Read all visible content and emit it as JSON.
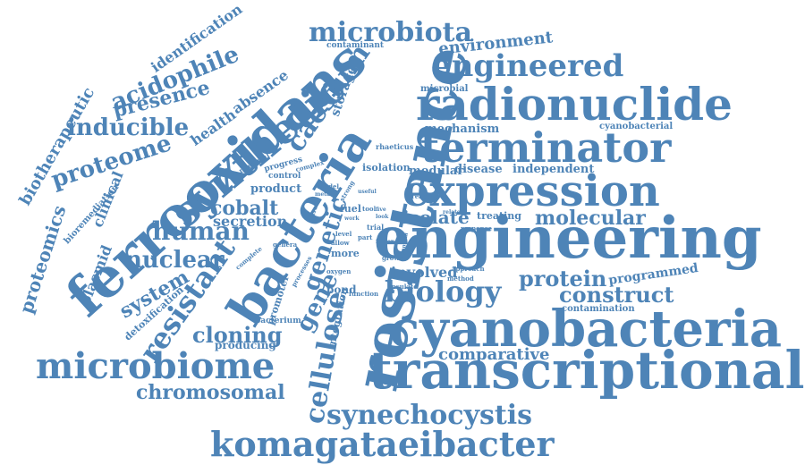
{
  "words": [
    {
      "text": "engineering",
      "weight": 100
    },
    {
      "text": "resistance",
      "weight": 98
    },
    {
      "text": "ferrooxidans",
      "weight": 96
    },
    {
      "text": "transcriptional",
      "weight": 90
    },
    {
      "text": "cyanobacteria",
      "weight": 88
    },
    {
      "text": "bacteria",
      "weight": 86
    },
    {
      "text": "radionuclide",
      "weight": 82
    },
    {
      "text": "expression",
      "weight": 80
    },
    {
      "text": "synthetic",
      "weight": 78
    },
    {
      "text": "terminator",
      "weight": 74
    },
    {
      "text": "microbiome",
      "weight": 62
    },
    {
      "text": "komagataeibacter",
      "weight": 60
    },
    {
      "text": "engineered",
      "weight": 58
    },
    {
      "text": "synechocystis",
      "weight": 54
    },
    {
      "text": "microbiota",
      "weight": 50
    },
    {
      "text": "resistant",
      "weight": 48
    },
    {
      "text": "biology",
      "weight": 46
    },
    {
      "text": "cellulose",
      "weight": 44
    },
    {
      "text": "caesium",
      "weight": 42
    },
    {
      "text": "human",
      "weight": 42
    },
    {
      "text": "proteome",
      "weight": 40
    },
    {
      "text": "inducible",
      "weight": 40
    },
    {
      "text": "acidophile",
      "weight": 40
    },
    {
      "text": "nuclear",
      "weight": 40
    },
    {
      "text": "genetic",
      "weight": 38
    },
    {
      "text": "gene",
      "weight": 38
    },
    {
      "text": "chromosomal",
      "weight": 38
    },
    {
      "text": "construct",
      "weight": 38
    },
    {
      "text": "protein",
      "weight": 38
    },
    {
      "text": "cloning",
      "weight": 36
    },
    {
      "text": "system",
      "weight": 34
    },
    {
      "text": "cobalt",
      "weight": 34
    },
    {
      "text": "presence",
      "weight": 34
    },
    {
      "text": "molecular",
      "weight": 32
    },
    {
      "text": "isolate",
      "weight": 30
    },
    {
      "text": "proteomics",
      "weight": 30
    },
    {
      "text": "biotherapeutic",
      "weight": 28
    },
    {
      "text": "plasmid",
      "weight": 28
    },
    {
      "text": "clinical",
      "weight": 28
    },
    {
      "text": "comparative",
      "weight": 28
    },
    {
      "text": "environment",
      "weight": 26
    },
    {
      "text": "involved",
      "weight": 26
    },
    {
      "text": "secretion",
      "weight": 24
    },
    {
      "text": "health",
      "weight": 24
    },
    {
      "text": "absence",
      "weight": 22
    },
    {
      "text": "identification",
      "weight": 22
    },
    {
      "text": "programmed",
      "weight": 22
    },
    {
      "text": "storage",
      "weight": 20
    },
    {
      "text": "mechanism",
      "weight": 20
    },
    {
      "text": "independent",
      "weight": 18
    },
    {
      "text": "modular",
      "weight": 18
    },
    {
      "text": "disease",
      "weight": 18
    },
    {
      "text": "product",
      "weight": 18
    },
    {
      "text": "producing",
      "weight": 18
    },
    {
      "text": "integration",
      "weight": 16
    },
    {
      "text": "detoxification",
      "weight": 16
    },
    {
      "text": "bioremediation",
      "weight": 14
    },
    {
      "text": "pond",
      "weight": 16
    },
    {
      "text": "treating",
      "weight": 16
    },
    {
      "text": "fuel",
      "weight": 16
    },
    {
      "text": "more",
      "weight": 16
    },
    {
      "text": "isolation",
      "weight": 14
    },
    {
      "text": "contamination",
      "weight": 14
    },
    {
      "text": "cyanobacterial",
      "weight": 14
    },
    {
      "text": "microbial",
      "weight": 14
    },
    {
      "text": "contaminant",
      "weight": 12
    },
    {
      "text": "promoter",
      "weight": 14
    },
    {
      "text": "bacterium",
      "weight": 12
    },
    {
      "text": "material",
      "weight": 12
    },
    {
      "text": "progress",
      "weight": 12
    },
    {
      "text": "control",
      "weight": 12
    },
    {
      "text": "complex",
      "weight": 10
    },
    {
      "text": "rhaeticus",
      "weight": 10
    },
    {
      "text": "reactive",
      "weight": 10
    },
    {
      "text": "response",
      "weight": 10
    },
    {
      "text": "grown",
      "weight": 10
    },
    {
      "text": "approach",
      "weight": 10
    },
    {
      "text": "method",
      "weight": 10
    },
    {
      "text": "insulate",
      "weight": 10
    },
    {
      "text": "function",
      "weight": 10
    },
    {
      "text": "oxygen",
      "weight": 10
    },
    {
      "text": "processes",
      "weight": 10
    },
    {
      "text": "complete",
      "weight": 10
    },
    {
      "text": "genera",
      "weight": 10
    },
    {
      "text": "allow",
      "weight": 10
    },
    {
      "text": "part",
      "weight": 10
    },
    {
      "text": "level",
      "weight": 10
    },
    {
      "text": "tool",
      "weight": 10
    },
    {
      "text": "trial",
      "weight": 10
    },
    {
      "text": "strain",
      "weight": 10
    },
    {
      "text": "strong",
      "weight": 10
    },
    {
      "text": "model",
      "weight": 10
    },
    {
      "text": "metal",
      "weight": 10
    },
    {
      "text": "useful",
      "weight": 10
    },
    {
      "text": "related",
      "weight": 10
    },
    {
      "text": "general",
      "weight": 10
    },
    {
      "text": "factor",
      "weight": 10
    },
    {
      "text": "look",
      "weight": 10
    },
    {
      "text": "five",
      "weight": 10
    },
    {
      "text": "work",
      "weight": 10
    }
  ]
}
